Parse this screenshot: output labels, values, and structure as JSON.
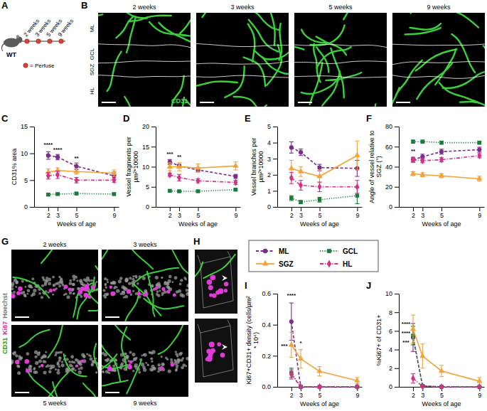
{
  "figure": {
    "panel_A": {
      "label": "A",
      "strain": "WT",
      "timepoints": [
        "2 weeks",
        "3 weeks",
        "5 weeks",
        "9 weeks"
      ],
      "key": "= Perfuse"
    },
    "panel_B": {
      "label": "B",
      "timepoints": [
        "2 weeks",
        "3 weeks",
        "5 weeks",
        "9 weeks"
      ],
      "layers": [
        "ML",
        "GCL",
        "SGZ",
        "HL"
      ],
      "stain": "CD31"
    },
    "panel_G": {
      "label": "G",
      "timepoints": [
        "2 weeks",
        "3 weeks",
        "5 weeks",
        "9 weeks"
      ],
      "stains": [
        "CD31",
        "Ki67",
        "Hoechst"
      ]
    },
    "panel_H": {
      "label": "H"
    }
  },
  "chart_data": [
    {
      "type": "line",
      "panel": "C",
      "x_label": "Weeks of age",
      "y_label": "CD31% area",
      "x": [
        2,
        3,
        5,
        9
      ],
      "xlim": [
        0.5,
        9.5
      ],
      "xticks": [
        2,
        3,
        5,
        9
      ],
      "ylim": [
        0,
        15
      ],
      "yticks": [
        0,
        5,
        10,
        15
      ],
      "series": [
        {
          "name": "ML",
          "color": "#7b2d8e",
          "marker": "circle",
          "line_style": "dashed",
          "values": [
            9.6,
            9.3,
            7.6,
            5.8
          ],
          "errors": [
            0.7,
            0.5,
            0.6,
            0.7
          ]
        },
        {
          "name": "GCL",
          "color": "#1b7a3c",
          "marker": "square",
          "line_style": "dotted",
          "values": [
            2.3,
            2.4,
            2.5,
            2.4
          ],
          "errors": [
            0.2,
            0.2,
            0.2,
            0.2
          ]
        },
        {
          "name": "SGZ",
          "color": "#f2a33a",
          "marker": "triangle",
          "line_style": "solid",
          "values": [
            6.5,
            6.8,
            6.6,
            6.3
          ],
          "errors": [
            0.6,
            0.5,
            0.5,
            0.6
          ]
        },
        {
          "name": "HL",
          "color": "#d42f86",
          "marker": "diamond",
          "line_style": "dashdot",
          "values": [
            5.8,
            6.0,
            5.0,
            5.0
          ],
          "errors": [
            0.6,
            0.7,
            0.5,
            0.4
          ]
        }
      ],
      "annotations": [
        {
          "text": "****",
          "x": 2,
          "y": 11.3
        },
        {
          "text": "****",
          "x": 3,
          "y": 10.4
        },
        {
          "text": "**",
          "x": 5,
          "y": 8.8
        }
      ]
    },
    {
      "type": "line",
      "panel": "D",
      "x_label": "Weeks of age",
      "y_label": "Vessel fragments per µm²*10000",
      "x": [
        2,
        3,
        5,
        9
      ],
      "xlim": [
        0.5,
        9.5
      ],
      "xticks": [
        2,
        3,
        5,
        9
      ],
      "ylim": [
        0,
        20
      ],
      "yticks": [
        0,
        5,
        10,
        15,
        20
      ],
      "series": [
        {
          "name": "ML",
          "color": "#7b2d8e",
          "marker": "circle",
          "line_style": "dashed",
          "values": [
            11.2,
            10.2,
            9.2,
            7.6
          ],
          "errors": [
            0.6,
            0.4,
            0.5,
            0.5
          ]
        },
        {
          "name": "GCL",
          "color": "#1b7a3c",
          "marker": "square",
          "line_style": "dotted",
          "values": [
            4.0,
            3.9,
            3.9,
            4.3
          ],
          "errors": [
            0.2,
            0.2,
            0.2,
            0.3
          ]
        },
        {
          "name": "SGZ",
          "color": "#f2a33a",
          "marker": "triangle",
          "line_style": "solid",
          "values": [
            10.0,
            10.0,
            9.7,
            10.2
          ],
          "errors": [
            1.0,
            1.0,
            1.0,
            1.0
          ]
        },
        {
          "name": "HL",
          "color": "#d42f86",
          "marker": "diamond",
          "line_style": "dashdot",
          "values": [
            8.0,
            7.3,
            6.5,
            6.1
          ],
          "errors": [
            0.4,
            0.8,
            0.5,
            0.5
          ]
        }
      ],
      "annotations": [
        {
          "text": "***",
          "x": 2,
          "y": 12.8
        },
        {
          "text": "**",
          "x": 3,
          "y": 12.0
        }
      ]
    },
    {
      "type": "line",
      "panel": "E",
      "x_label": "Weeks of age",
      "y_label": "Vessel branches per µm²*10000",
      "x": [
        2,
        3,
        5,
        9
      ],
      "xlim": [
        0.5,
        9.5
      ],
      "xticks": [
        2,
        3,
        5,
        9
      ],
      "ylim": [
        0,
        5
      ],
      "yticks": [
        0,
        1,
        2,
        3,
        4,
        5
      ],
      "series": [
        {
          "name": "ML",
          "color": "#7b2d8e",
          "marker": "circle",
          "line_style": "dashed",
          "values": [
            3.7,
            3.4,
            2.45,
            2.4
          ],
          "errors": [
            0.35,
            0.2,
            0.2,
            0.5
          ]
        },
        {
          "name": "GCL",
          "color": "#1b7a3c",
          "marker": "square",
          "line_style": "dotted",
          "values": [
            0.55,
            0.3,
            0.45,
            0.7
          ],
          "errors": [
            0.15,
            0.1,
            0.15,
            0.5
          ]
        },
        {
          "name": "SGZ",
          "color": "#f2a33a",
          "marker": "triangle",
          "line_style": "solid",
          "values": [
            2.4,
            2.2,
            1.9,
            3.2
          ],
          "errors": [
            0.5,
            0.3,
            0.4,
            0.9
          ]
        },
        {
          "name": "HL",
          "color": "#d42f86",
          "marker": "diamond",
          "line_style": "dashdot",
          "values": [
            1.8,
            1.35,
            1.25,
            1.25
          ],
          "errors": [
            0.35,
            0.3,
            0.3,
            0.4
          ]
        }
      ]
    },
    {
      "type": "line",
      "panel": "F",
      "x_label": "Weeks of age",
      "y_label": "Angle of vessel relative to SGZ (°)",
      "x": [
        2,
        3,
        5,
        9
      ],
      "xlim": [
        0.5,
        9.5
      ],
      "xticks": [
        2,
        3,
        5,
        9
      ],
      "ylim": [
        0,
        80
      ],
      "yticks": [
        0,
        20,
        40,
        60,
        80
      ],
      "series": [
        {
          "name": "ML",
          "color": "#7b2d8e",
          "marker": "circle",
          "line_style": "dashed",
          "values": [
            47,
            50,
            55,
            57
          ],
          "errors": [
            2.5,
            2.5,
            2.5,
            2.5
          ]
        },
        {
          "name": "GCL",
          "color": "#1b7a3c",
          "marker": "square",
          "line_style": "dotted",
          "values": [
            65,
            65,
            64,
            64
          ],
          "errors": [
            1.5,
            1.5,
            1.5,
            1.5
          ]
        },
        {
          "name": "SGZ",
          "color": "#f2a33a",
          "marker": "triangle",
          "line_style": "solid",
          "values": [
            33,
            32,
            31,
            28
          ],
          "errors": [
            2,
            2,
            2,
            2.5
          ]
        },
        {
          "name": "HL",
          "color": "#d42f86",
          "marker": "diamond",
          "line_style": "dashdot",
          "values": [
            47,
            46,
            47,
            51
          ],
          "errors": [
            2,
            2,
            2,
            2
          ]
        }
      ],
      "annotations": [
        {
          "text": "**",
          "x": 2,
          "y": 54
        }
      ]
    },
    {
      "type": "line",
      "panel": "I",
      "x_label": "Weeks of age",
      "y_label": "Ki67+CD31+ density (cells/µm² * 10⁴)",
      "legend": "top",
      "x": [
        2,
        3,
        5,
        9
      ],
      "xlim": [
        0.5,
        9.5
      ],
      "xticks": [
        2,
        3,
        5,
        9
      ],
      "ylim": [
        0,
        0.6
      ],
      "yticks": [
        {
          "value": 0,
          "label": "0.0"
        },
        0.2,
        0.4,
        0.6
      ],
      "series": [
        {
          "name": "ML",
          "color": "#7b2d8e",
          "marker": "circle",
          "line_style": "dashed",
          "values": [
            0.42,
            0,
            0,
            0
          ],
          "errors": [
            0.12,
            0,
            0,
            0
          ]
        },
        {
          "name": "GCL",
          "color": "#1b7a3c",
          "marker": "square",
          "line_style": "dotted",
          "values": [
            0.09,
            0,
            0,
            0
          ],
          "errors": [
            0.03,
            0,
            0,
            0
          ]
        },
        {
          "name": "SGZ",
          "color": "#f2a33a",
          "marker": "triangle",
          "line_style": "solid",
          "values": [
            0.27,
            0.18,
            0.1,
            0.04
          ],
          "errors": [
            0.08,
            0.06,
            0.03,
            0.02
          ]
        },
        {
          "name": "HL",
          "color": "#d42f86",
          "marker": "diamond",
          "line_style": "dashdot",
          "values": [
            0.08,
            0,
            0,
            0
          ],
          "errors": [
            0.03,
            0,
            0,
            0
          ]
        }
      ],
      "annotations": [
        {
          "text": "****",
          "x": 2,
          "y": 0.575
        },
        {
          "text": "***",
          "x": 1.25,
          "y": 0.25
        },
        {
          "text": "*",
          "x": 3,
          "y": 0.27
        }
      ]
    },
    {
      "type": "line",
      "panel": "J",
      "x_label": "Weeks of age",
      "y_label": "%Ki67+ of CD31+",
      "x": [
        2,
        3,
        5,
        9
      ],
      "xlim": [
        0.5,
        9.5
      ],
      "xticks": [
        2,
        3,
        5,
        9
      ],
      "ylim": [
        0,
        10
      ],
      "yticks": [
        0,
        2,
        4,
        6,
        8,
        10
      ],
      "series": [
        {
          "name": "ML",
          "color": "#7b2d8e",
          "marker": "circle",
          "line_style": "dashed",
          "values": [
            5.3,
            0.1,
            0,
            0
          ],
          "errors": [
            1.5,
            0.1,
            0,
            0
          ]
        },
        {
          "name": "GCL",
          "color": "#1b7a3c",
          "marker": "square",
          "line_style": "dotted",
          "values": [
            5.5,
            0.1,
            0,
            0
          ],
          "errors": [
            1.0,
            0.1,
            0,
            0
          ]
        },
        {
          "name": "SGZ",
          "color": "#f2a33a",
          "marker": "triangle",
          "line_style": "solid",
          "values": [
            6.2,
            3.3,
            1.7,
            0.6
          ],
          "errors": [
            1.5,
            1.3,
            0.6,
            0.4
          ]
        },
        {
          "name": "HL",
          "color": "#d42f86",
          "marker": "diamond",
          "line_style": "dashdot",
          "values": [
            0.9,
            0.05,
            0,
            0
          ],
          "errors": [
            0.5,
            0.05,
            0,
            0
          ]
        }
      ],
      "annotations": [
        {
          "text": "****",
          "x": 1.25,
          "y": 6.6
        },
        {
          "text": "****",
          "x": 1.25,
          "y": 5.6
        },
        {
          "text": "***",
          "x": 1.25,
          "y": 4.6
        }
      ]
    }
  ]
}
